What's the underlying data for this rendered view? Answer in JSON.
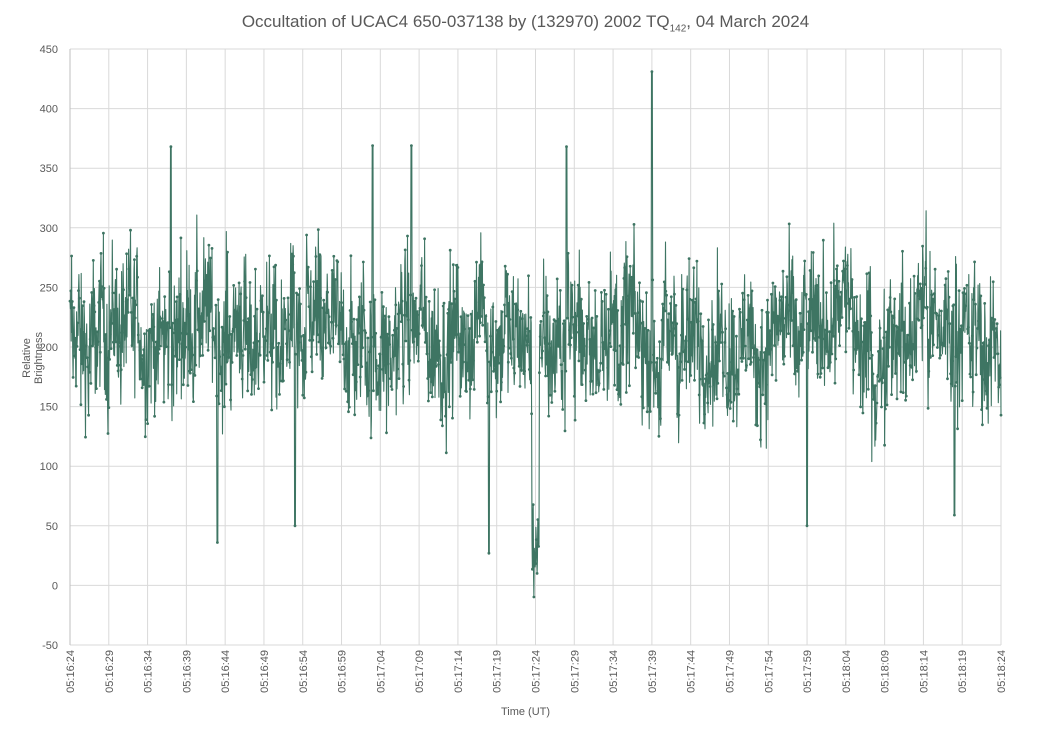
{
  "chart_data": {
    "type": "line",
    "title_main": "Occultation of UCAC4 650-037138 by (132970) 2002 TQ",
    "title_sub": "142",
    "title_tail": ", 04 March 2024",
    "xlabel": "Time (UT)",
    "ylabel": "Relative Brightness",
    "ylim": [
      -50,
      450
    ],
    "yticks": [
      -50,
      0,
      50,
      100,
      150,
      200,
      250,
      300,
      350,
      400,
      450
    ],
    "xticks": [
      "05:16:24",
      "05:16:29",
      "05:16:34",
      "05:16:39",
      "05:16:44",
      "05:16:49",
      "05:16:54",
      "05:16:59",
      "05:17:04",
      "05:17:09",
      "05:17:14",
      "05:17:19",
      "05:17:24",
      "05:17:29",
      "05:17:34",
      "05:17:39",
      "05:17:44",
      "05:17:49",
      "05:17:54",
      "05:17:59",
      "05:18:04",
      "05:18:09",
      "05:18:14",
      "05:18:19",
      "05:18:24"
    ],
    "x_start": "05:16:24",
    "x_end": "05:18:24",
    "grid": true,
    "legend": "none",
    "series": [
      {
        "color": "#3e7563",
        "samples_per_second": 20,
        "baseline_mean": 210,
        "noise_amplitude": 55,
        "events": [
          {
            "time": "05:17:24",
            "min_value": -10,
            "duration_s": 0.5
          }
        ],
        "notable_peaks": [
          {
            "time": "05:16:37",
            "value": 368
          },
          {
            "time": "05:17:03",
            "value": 369
          },
          {
            "time": "05:17:08",
            "value": 369
          },
          {
            "time": "05:17:28",
            "value": 368
          },
          {
            "time": "05:17:39",
            "value": 431
          }
        ],
        "notable_dips": [
          {
            "time": "05:16:43",
            "value": 36
          },
          {
            "time": "05:16:53",
            "value": 50
          },
          {
            "time": "05:17:18",
            "value": 27
          },
          {
            "time": "05:17:24",
            "value": -10
          },
          {
            "time": "05:17:59",
            "value": 50
          },
          {
            "time": "05:18:18",
            "value": 59
          }
        ]
      }
    ]
  }
}
